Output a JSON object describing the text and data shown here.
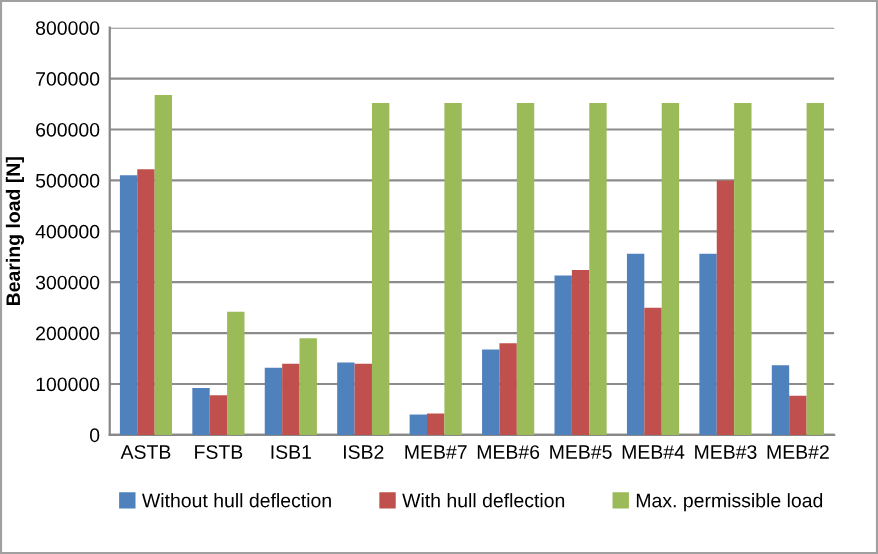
{
  "chart_data": {
    "type": "bar",
    "ylabel": "Bearing load [N]",
    "categories": [
      "ASTB",
      "FSTB",
      "ISB1",
      "ISB2",
      "MEB#7",
      "MEB#6",
      "MEB#5",
      "MEB#4",
      "MEB#3",
      "MEB#2"
    ],
    "series": [
      {
        "name": "Without hull deflection",
        "color": "#4f81bd",
        "values": [
          510000,
          92000,
          132000,
          142000,
          40000,
          168000,
          313000,
          356000,
          356000,
          137000
        ]
      },
      {
        "name": "With hull deflection",
        "color": "#c0504d",
        "values": [
          522000,
          78000,
          140000,
          140000,
          42000,
          180000,
          324000,
          250000,
          500000,
          77000
        ]
      },
      {
        "name": "Max. permissible load",
        "color": "#9bbb59",
        "values": [
          668000,
          242000,
          190000,
          652000,
          652000,
          652000,
          652000,
          652000,
          652000,
          652000
        ]
      }
    ],
    "ylim": [
      0,
      800000
    ],
    "yticks": [
      0,
      100000,
      200000,
      300000,
      400000,
      500000,
      600000,
      700000,
      800000
    ],
    "grid": "y",
    "legend": "bottom"
  }
}
